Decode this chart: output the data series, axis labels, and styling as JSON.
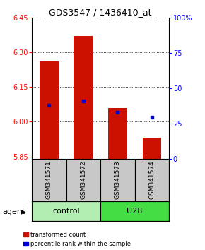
{
  "title": "GDS3547 / 1436410_at",
  "samples": [
    "GSM341571",
    "GSM341572",
    "GSM341573",
    "GSM341574"
  ],
  "red_values": [
    6.26,
    6.37,
    6.06,
    5.93
  ],
  "blue_values": [
    6.07,
    6.09,
    6.04,
    6.02
  ],
  "y_min": 5.84,
  "y_max": 6.45,
  "y_ticks": [
    5.85,
    6.0,
    6.15,
    6.3,
    6.45
  ],
  "right_y_ticks": [
    0,
    25,
    50,
    75,
    100
  ],
  "right_y_labels": [
    "0",
    "25",
    "50",
    "75",
    "100%"
  ],
  "groups": [
    {
      "label": "control",
      "indices": [
        0,
        1
      ],
      "color": "#B2EEB2"
    },
    {
      "label": "U28",
      "indices": [
        2,
        3
      ],
      "color": "#44DD44"
    }
  ],
  "agent_label": "agent",
  "legend_red": "transformed count",
  "legend_blue": "percentile rank within the sample",
  "bar_color": "#CC1100",
  "dot_color": "#0000CC",
  "bar_bottom": 5.84,
  "bar_width": 0.55,
  "title_fontsize": 9,
  "tick_fontsize": 7,
  "sample_fontsize": 6.5,
  "agent_fontsize": 8,
  "group_fontsize": 8,
  "legend_fontsize": 6
}
